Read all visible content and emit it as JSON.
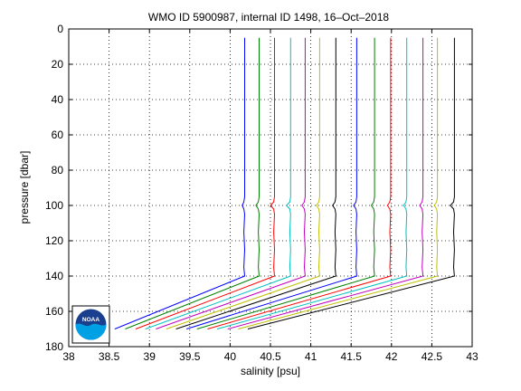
{
  "chart_data": {
    "type": "line",
    "title": "WMO ID 5900987, internal ID 1498, 16–Oct–2018",
    "xlabel": "salinity [psu]",
    "ylabel": "pressure [dbar]",
    "xlim": [
      38,
      43
    ],
    "ylim": [
      180,
      0
    ],
    "y_reversed": true,
    "grid": true,
    "grid_style": "dotted",
    "legend": "none",
    "xticks": [
      "38",
      "38.5",
      "39",
      "39.5",
      "40",
      "40.5",
      "41",
      "41.5",
      "42",
      "42.5",
      "43"
    ],
    "yticks": [
      "0",
      "20",
      "40",
      "60",
      "80",
      "100",
      "120",
      "140",
      "160",
      "180"
    ],
    "pressure": [
      5,
      60,
      95,
      98,
      100,
      102,
      105,
      115,
      125,
      135,
      140,
      170
    ],
    "series": [
      {
        "color": "#0000ff",
        "salinity": [
          40.18,
          40.18,
          40.18,
          40.17,
          40.15,
          40.17,
          40.18,
          40.17,
          40.18,
          40.17,
          40.18,
          38.57
        ]
      },
      {
        "color": "#008000",
        "salinity": [
          40.36,
          40.36,
          40.36,
          40.35,
          40.32,
          40.35,
          40.36,
          40.35,
          40.36,
          40.35,
          40.36,
          38.7
        ]
      },
      {
        "color": "#ff0000",
        "salinity": [
          40.55,
          40.55,
          40.55,
          40.54,
          40.5,
          40.54,
          40.55,
          40.54,
          40.55,
          40.54,
          40.55,
          38.83
        ]
      },
      {
        "color": "#00bfbf",
        "salinity": [
          40.75,
          40.75,
          40.75,
          40.74,
          40.7,
          40.74,
          40.75,
          40.74,
          40.75,
          40.74,
          40.75,
          38.95
        ]
      },
      {
        "color": "#bf00bf",
        "salinity": [
          40.93,
          40.93,
          40.93,
          40.92,
          40.89,
          40.92,
          40.93,
          40.92,
          40.93,
          40.92,
          40.93,
          39.08
        ]
      },
      {
        "color": "#bfbf00",
        "salinity": [
          41.11,
          41.11,
          41.11,
          41.1,
          41.07,
          41.1,
          41.11,
          41.1,
          41.11,
          41.1,
          41.11,
          39.21
        ]
      },
      {
        "color": "#000000",
        "salinity": [
          41.31,
          41.31,
          41.31,
          41.3,
          41.27,
          41.3,
          41.31,
          41.3,
          41.31,
          41.3,
          41.31,
          39.33
        ]
      },
      {
        "color": "#0000ff",
        "salinity": [
          41.57,
          41.57,
          41.57,
          41.56,
          41.53,
          41.56,
          41.57,
          41.56,
          41.57,
          41.56,
          41.57,
          39.46
        ]
      },
      {
        "color": "#008000",
        "salinity": [
          41.79,
          41.79,
          41.79,
          41.78,
          41.75,
          41.78,
          41.79,
          41.78,
          41.79,
          41.78,
          41.79,
          39.59
        ]
      },
      {
        "color": "#ff0000",
        "salinity": [
          41.99,
          41.99,
          41.99,
          41.98,
          41.95,
          41.98,
          41.99,
          41.98,
          41.99,
          41.98,
          41.99,
          39.72
        ]
      },
      {
        "color": "#00bfbf",
        "salinity": [
          42.19,
          42.19,
          42.19,
          42.18,
          42.15,
          42.18,
          42.19,
          42.18,
          42.19,
          42.18,
          42.19,
          39.84
        ]
      },
      {
        "color": "#bf00bf",
        "salinity": [
          42.39,
          42.39,
          42.39,
          42.38,
          42.35,
          42.38,
          42.39,
          42.38,
          42.39,
          42.38,
          42.39,
          39.97
        ]
      },
      {
        "color": "#bfbf00",
        "salinity": [
          42.57,
          42.57,
          42.57,
          42.56,
          42.53,
          42.56,
          42.57,
          42.56,
          42.57,
          42.56,
          42.57,
          40.1
        ]
      },
      {
        "color": "#000000",
        "salinity": [
          42.78,
          42.78,
          42.78,
          42.77,
          42.73,
          42.77,
          42.78,
          42.77,
          42.78,
          42.77,
          42.78,
          40.22
        ]
      }
    ]
  },
  "logo": {
    "text": "NOAA",
    "sky_color": "#1b3f8f",
    "sea_color": "#00a0e4"
  }
}
